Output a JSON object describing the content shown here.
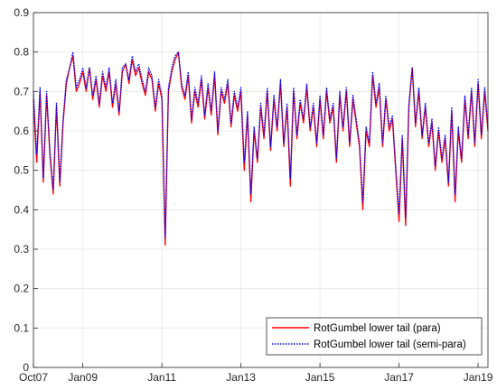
{
  "chart_data": {
    "type": "line",
    "title": "",
    "xlabel": "",
    "ylabel": "",
    "x_range": [
      "2007-10",
      "2019-04"
    ],
    "ylim": [
      0,
      0.9
    ],
    "x_ticks": [
      "Oct07",
      "Jan09",
      "Jan11",
      "Jan13",
      "Jan15",
      "Jan17",
      "Jan19"
    ],
    "y_ticks": [
      "0",
      "0.1",
      "0.2",
      "0.3",
      "0.4",
      "0.5",
      "0.6",
      "0.7",
      "0.8",
      "0.9"
    ],
    "grid": true,
    "legend_position": "bottom-right",
    "series": [
      {
        "name": "RotGumbel lower tail (para)",
        "color": "#ff0000",
        "style": "solid",
        "x": [
          "2007-10",
          "2007-11",
          "2007-12",
          "2008-01",
          "2008-02",
          "2008-03",
          "2008-04",
          "2008-05",
          "2008-06",
          "2008-07",
          "2008-08",
          "2008-09",
          "2008-10",
          "2008-11",
          "2008-12",
          "2009-01",
          "2009-02",
          "2009-03",
          "2009-04",
          "2009-05",
          "2009-06",
          "2009-07",
          "2009-08",
          "2009-09",
          "2009-10",
          "2009-11",
          "2009-12",
          "2010-01",
          "2010-02",
          "2010-03",
          "2010-04",
          "2010-05",
          "2010-06",
          "2010-07",
          "2010-08",
          "2010-09",
          "2010-10",
          "2010-11",
          "2010-12",
          "2011-01",
          "2011-02",
          "2011-03",
          "2011-04",
          "2011-05",
          "2011-06",
          "2011-07",
          "2011-08",
          "2011-09",
          "2011-10",
          "2011-11",
          "2011-12",
          "2012-01",
          "2012-02",
          "2012-03",
          "2012-04",
          "2012-05",
          "2012-06",
          "2012-07",
          "2012-08",
          "2012-09",
          "2012-10",
          "2012-11",
          "2012-12",
          "2013-01",
          "2013-02",
          "2013-03",
          "2013-04",
          "2013-05",
          "2013-06",
          "2013-07",
          "2013-08",
          "2013-09",
          "2013-10",
          "2013-11",
          "2013-12",
          "2014-01",
          "2014-02",
          "2014-03",
          "2014-04",
          "2014-05",
          "2014-06",
          "2014-07",
          "2014-08",
          "2014-09",
          "2014-10",
          "2014-11",
          "2014-12",
          "2015-01",
          "2015-02",
          "2015-03",
          "2015-04",
          "2015-05",
          "2015-06",
          "2015-07",
          "2015-08",
          "2015-09",
          "2015-10",
          "2015-11",
          "2015-12",
          "2016-01",
          "2016-02",
          "2016-03",
          "2016-04",
          "2016-05",
          "2016-06",
          "2016-07",
          "2016-08",
          "2016-09",
          "2016-10",
          "2016-11",
          "2016-12",
          "2017-01",
          "2017-02",
          "2017-03",
          "2017-04",
          "2017-05",
          "2017-06",
          "2017-07",
          "2017-08",
          "2017-09",
          "2017-10",
          "2017-11",
          "2017-12",
          "2018-01",
          "2018-02",
          "2018-03",
          "2018-04",
          "2018-05",
          "2018-06",
          "2018-07",
          "2018-08",
          "2018-09",
          "2018-10",
          "2018-11",
          "2018-12",
          "2019-01",
          "2019-02",
          "2019-03",
          "2019-04"
        ],
        "y": [
          0.68,
          0.52,
          0.7,
          0.47,
          0.69,
          0.54,
          0.44,
          0.66,
          0.46,
          0.62,
          0.72,
          0.76,
          0.79,
          0.7,
          0.72,
          0.75,
          0.7,
          0.76,
          0.68,
          0.73,
          0.66,
          0.74,
          0.7,
          0.75,
          0.66,
          0.72,
          0.64,
          0.75,
          0.77,
          0.72,
          0.78,
          0.74,
          0.76,
          0.72,
          0.69,
          0.75,
          0.73,
          0.65,
          0.72,
          0.68,
          0.31,
          0.7,
          0.75,
          0.78,
          0.8,
          0.71,
          0.68,
          0.74,
          0.62,
          0.7,
          0.66,
          0.73,
          0.63,
          0.71,
          0.64,
          0.74,
          0.59,
          0.7,
          0.67,
          0.72,
          0.61,
          0.69,
          0.65,
          0.7,
          0.5,
          0.64,
          0.42,
          0.6,
          0.52,
          0.66,
          0.58,
          0.7,
          0.55,
          0.68,
          0.6,
          0.72,
          0.56,
          0.66,
          0.46,
          0.7,
          0.58,
          0.67,
          0.62,
          0.71,
          0.6,
          0.66,
          0.56,
          0.68,
          0.58,
          0.7,
          0.62,
          0.66,
          0.52,
          0.69,
          0.6,
          0.7,
          0.56,
          0.68,
          0.62,
          0.56,
          0.4,
          0.6,
          0.56,
          0.74,
          0.66,
          0.71,
          0.56,
          0.68,
          0.6,
          0.63,
          0.5,
          0.37,
          0.58,
          0.36,
          0.66,
          0.76,
          0.61,
          0.7,
          0.58,
          0.66,
          0.56,
          0.62,
          0.5,
          0.6,
          0.52,
          0.58,
          0.46,
          0.65,
          0.42,
          0.6,
          0.52,
          0.68,
          0.58,
          0.7,
          0.56,
          0.72,
          0.58,
          0.7,
          0.6
        ]
      },
      {
        "name": "RotGumbel lower tail (semi-para)",
        "color": "#0000ff",
        "style": "dotted",
        "x": [
          "2007-10",
          "2007-11",
          "2007-12",
          "2008-01",
          "2008-02",
          "2008-03",
          "2008-04",
          "2008-05",
          "2008-06",
          "2008-07",
          "2008-08",
          "2008-09",
          "2008-10",
          "2008-11",
          "2008-12",
          "2009-01",
          "2009-02",
          "2009-03",
          "2009-04",
          "2009-05",
          "2009-06",
          "2009-07",
          "2009-08",
          "2009-09",
          "2009-10",
          "2009-11",
          "2009-12",
          "2010-01",
          "2010-02",
          "2010-03",
          "2010-04",
          "2010-05",
          "2010-06",
          "2010-07",
          "2010-08",
          "2010-09",
          "2010-10",
          "2010-11",
          "2010-12",
          "2011-01",
          "2011-02",
          "2011-03",
          "2011-04",
          "2011-05",
          "2011-06",
          "2011-07",
          "2011-08",
          "2011-09",
          "2011-10",
          "2011-11",
          "2011-12",
          "2012-01",
          "2012-02",
          "2012-03",
          "2012-04",
          "2012-05",
          "2012-06",
          "2012-07",
          "2012-08",
          "2012-09",
          "2012-10",
          "2012-11",
          "2012-12",
          "2013-01",
          "2013-02",
          "2013-03",
          "2013-04",
          "2013-05",
          "2013-06",
          "2013-07",
          "2013-08",
          "2013-09",
          "2013-10",
          "2013-11",
          "2013-12",
          "2014-01",
          "2014-02",
          "2014-03",
          "2014-04",
          "2014-05",
          "2014-06",
          "2014-07",
          "2014-08",
          "2014-09",
          "2014-10",
          "2014-11",
          "2014-12",
          "2015-01",
          "2015-02",
          "2015-03",
          "2015-04",
          "2015-05",
          "2015-06",
          "2015-07",
          "2015-08",
          "2015-09",
          "2015-10",
          "2015-11",
          "2015-12",
          "2016-01",
          "2016-02",
          "2016-03",
          "2016-04",
          "2016-05",
          "2016-06",
          "2016-07",
          "2016-08",
          "2016-09",
          "2016-10",
          "2016-11",
          "2016-12",
          "2017-01",
          "2017-02",
          "2017-03",
          "2017-04",
          "2017-05",
          "2017-06",
          "2017-07",
          "2017-08",
          "2017-09",
          "2017-10",
          "2017-11",
          "2017-12",
          "2018-01",
          "2018-02",
          "2018-03",
          "2018-04",
          "2018-05",
          "2018-06",
          "2018-07",
          "2018-08",
          "2018-09",
          "2018-10",
          "2018-11",
          "2018-12",
          "2019-01",
          "2019-02",
          "2019-03",
          "2019-04"
        ],
        "y": [
          0.7,
          0.54,
          0.71,
          0.48,
          0.7,
          0.55,
          0.45,
          0.67,
          0.47,
          0.63,
          0.73,
          0.76,
          0.8,
          0.71,
          0.73,
          0.76,
          0.71,
          0.76,
          0.69,
          0.74,
          0.67,
          0.75,
          0.71,
          0.76,
          0.67,
          0.73,
          0.65,
          0.76,
          0.77,
          0.73,
          0.79,
          0.75,
          0.77,
          0.73,
          0.7,
          0.76,
          0.74,
          0.66,
          0.73,
          0.69,
          0.33,
          0.71,
          0.76,
          0.79,
          0.8,
          0.72,
          0.69,
          0.75,
          0.63,
          0.71,
          0.67,
          0.74,
          0.64,
          0.72,
          0.65,
          0.75,
          0.6,
          0.71,
          0.68,
          0.73,
          0.62,
          0.7,
          0.66,
          0.71,
          0.52,
          0.65,
          0.44,
          0.61,
          0.53,
          0.67,
          0.59,
          0.71,
          0.56,
          0.69,
          0.61,
          0.73,
          0.57,
          0.67,
          0.48,
          0.71,
          0.59,
          0.68,
          0.63,
          0.72,
          0.61,
          0.67,
          0.57,
          0.69,
          0.59,
          0.71,
          0.63,
          0.67,
          0.53,
          0.7,
          0.61,
          0.71,
          0.57,
          0.69,
          0.63,
          0.57,
          0.42,
          0.61,
          0.57,
          0.75,
          0.67,
          0.72,
          0.57,
          0.69,
          0.61,
          0.64,
          0.51,
          0.39,
          0.59,
          0.38,
          0.67,
          0.76,
          0.62,
          0.71,
          0.59,
          0.67,
          0.57,
          0.63,
          0.51,
          0.61,
          0.53,
          0.59,
          0.47,
          0.66,
          0.44,
          0.61,
          0.53,
          0.69,
          0.59,
          0.71,
          0.57,
          0.73,
          0.59,
          0.71,
          0.61
        ]
      }
    ]
  }
}
